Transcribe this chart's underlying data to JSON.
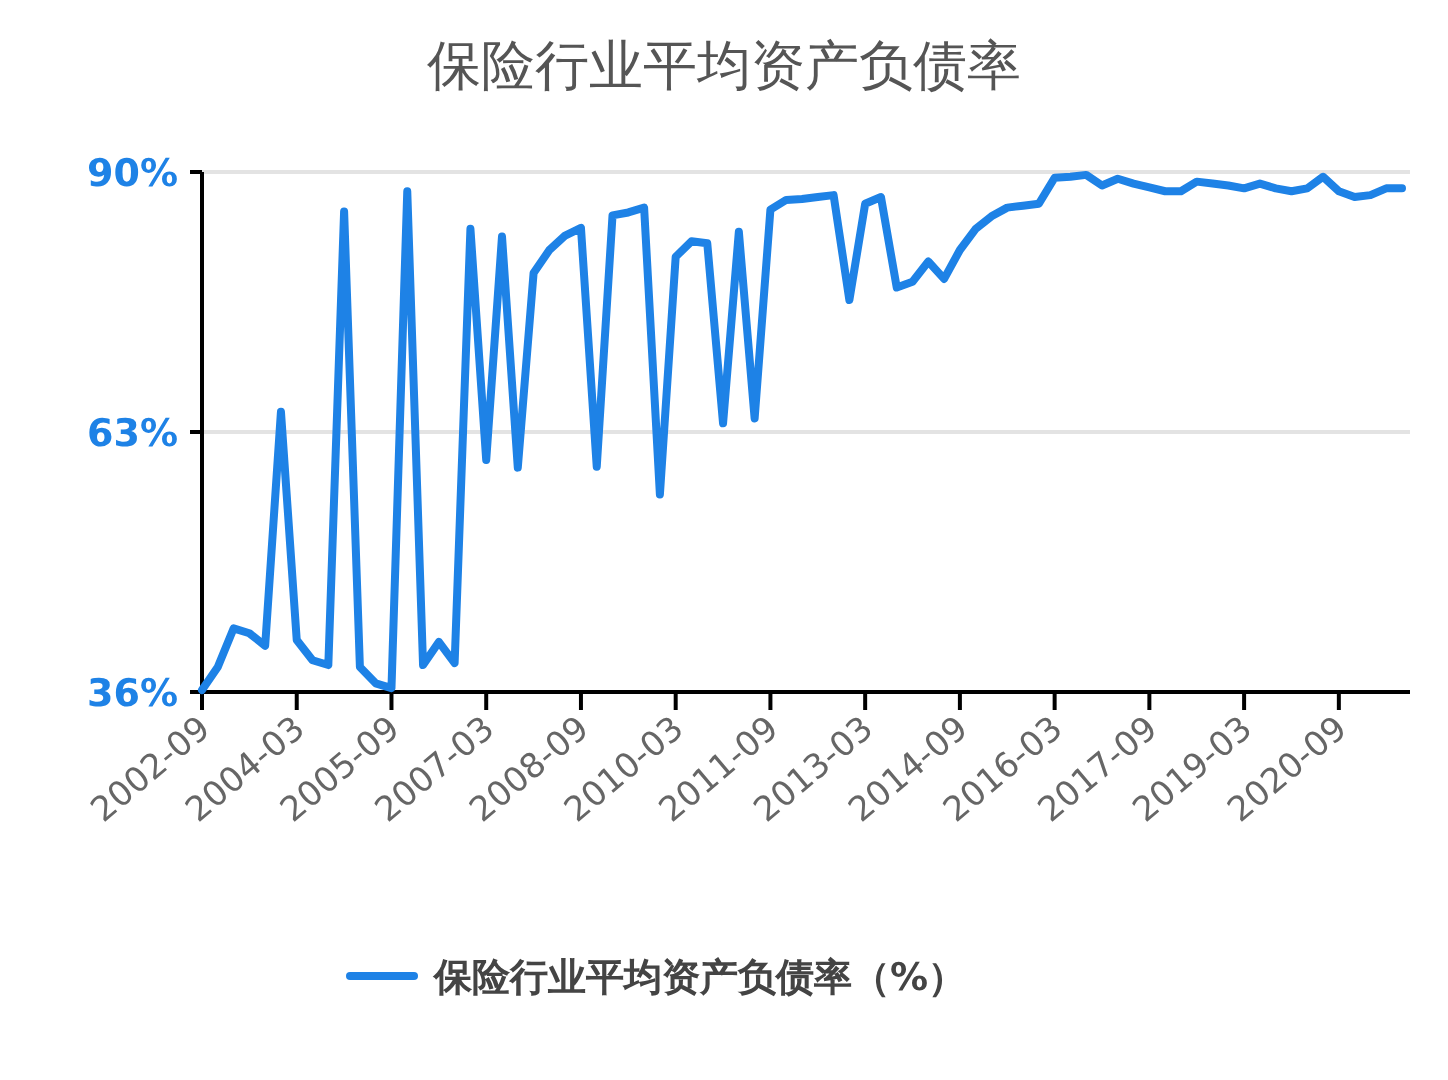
{
  "chart_data": {
    "type": "line",
    "title": "保险行业平均资产负债率",
    "categories": [
      "2002-09",
      null,
      null,
      null,
      null,
      null,
      "2004-03",
      null,
      null,
      null,
      null,
      null,
      "2005-09",
      null,
      null,
      null,
      null,
      null,
      "2007-03",
      null,
      null,
      null,
      null,
      null,
      "2008-09",
      null,
      null,
      null,
      null,
      null,
      "2010-03",
      null,
      null,
      null,
      null,
      null,
      "2011-09",
      null,
      null,
      null,
      null,
      null,
      "2013-03",
      null,
      null,
      null,
      null,
      null,
      "2014-09",
      null,
      null,
      null,
      null,
      null,
      "2016-03",
      null,
      null,
      null,
      null,
      null,
      "2017-09",
      null,
      null,
      null,
      null,
      null,
      "2019-03",
      null,
      null,
      null,
      null,
      null,
      "2020-09",
      null,
      null,
      null,
      null
    ],
    "series": [
      {
        "name": "保险行业平均资产负债率（%）",
        "color": "#1e82e6",
        "values": [
          36.2,
          38.6,
          42.6,
          42.1,
          40.8,
          65.1,
          41.4,
          39.3,
          38.8,
          85.9,
          38.6,
          36.9,
          36.4,
          88.0,
          38.8,
          41.2,
          39.0,
          84.1,
          60.1,
          83.3,
          59.3,
          79.5,
          81.9,
          83.4,
          84.2,
          59.4,
          85.5,
          85.8,
          86.3,
          56.5,
          81.2,
          82.8,
          82.6,
          63.9,
          83.8,
          64.4,
          86.1,
          87.1,
          87.2,
          87.4,
          87.6,
          76.7,
          86.7,
          87.4,
          78.0,
          78.6,
          80.7,
          78.9,
          81.9,
          84.1,
          85.4,
          86.3,
          86.5,
          86.7,
          89.4,
          89.5,
          89.7,
          88.6,
          89.3,
          88.8,
          88.4,
          88.0,
          88.0,
          89.0,
          88.8,
          88.6,
          88.3,
          88.8,
          88.3,
          88.0,
          88.3,
          89.5,
          88.0,
          87.4,
          87.6,
          88.3,
          88.3
        ]
      }
    ],
    "ylim": [
      36,
      90
    ],
    "yticks": [
      {
        "value": 36,
        "label": "36%"
      },
      {
        "value": 63,
        "label": "63%"
      },
      {
        "value": 90,
        "label": "90%"
      }
    ],
    "grid": "y",
    "legend": "bottom"
  }
}
